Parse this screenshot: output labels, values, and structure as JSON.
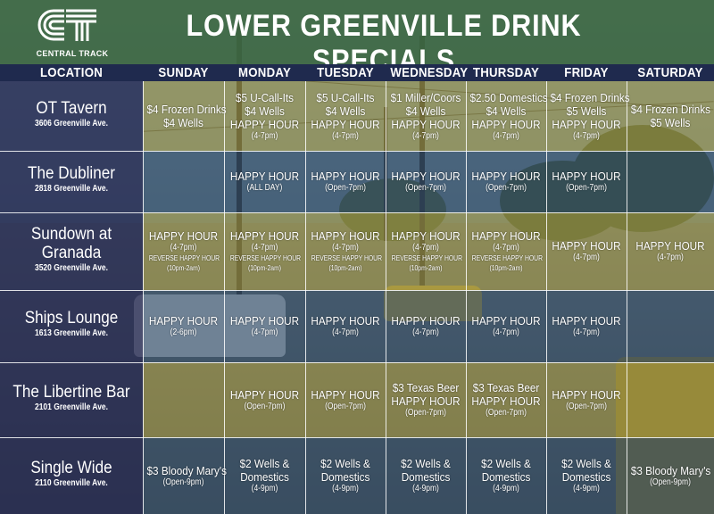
{
  "header": {
    "brand": "CENTRAL TRACK",
    "title": "LOWER GREENVILLE DRINK SPECIALS"
  },
  "columns": [
    "LOCATION",
    "SUNDAY",
    "MONDAY",
    "TUESDAY",
    "WEDNESDAY",
    "THURSDAY",
    "FRIDAY",
    "SATURDAY"
  ],
  "rows": [
    {
      "name": "OT Tavern",
      "address": "3606 Greenville Ave.",
      "days": [
        [
          {
            "t": "$4 Frozen Drinks",
            "k": "l"
          },
          {
            "t": "$4 Wells",
            "k": "l"
          }
        ],
        [
          {
            "t": "$5 U-Call-Its",
            "k": "l"
          },
          {
            "t": "$4 Wells",
            "k": "l"
          },
          {
            "t": "HAPPY HOUR",
            "k": "l"
          },
          {
            "t": "(4-7pm)",
            "k": "s"
          }
        ],
        [
          {
            "t": "$5 U-Call-Its",
            "k": "l"
          },
          {
            "t": "$4 Wells",
            "k": "l"
          },
          {
            "t": "HAPPY HOUR",
            "k": "l"
          },
          {
            "t": "(4-7pm)",
            "k": "s"
          }
        ],
        [
          {
            "t": "$1 Miller/Coors",
            "k": "l"
          },
          {
            "t": "$4 Wells",
            "k": "l"
          },
          {
            "t": "HAPPY HOUR",
            "k": "l"
          },
          {
            "t": "(4-7pm)",
            "k": "s"
          }
        ],
        [
          {
            "t": "$2.50 Domestics",
            "k": "l"
          },
          {
            "t": "$4 Wells",
            "k": "l"
          },
          {
            "t": "HAPPY HOUR",
            "k": "l"
          },
          {
            "t": "(4-7pm)",
            "k": "s"
          }
        ],
        [
          {
            "t": "$4 Frozen Drinks",
            "k": "l"
          },
          {
            "t": "$5 Wells",
            "k": "l"
          },
          {
            "t": "HAPPY HOUR",
            "k": "l"
          },
          {
            "t": "(4-7pm)",
            "k": "s"
          }
        ],
        [
          {
            "t": "$4 Frozen Drinks",
            "k": "l"
          },
          {
            "t": "$5 Wells",
            "k": "l"
          }
        ]
      ]
    },
    {
      "name": "The Dubliner",
      "address": "2818 Greenville Ave.",
      "days": [
        [],
        [
          {
            "t": "HAPPY HOUR",
            "k": "l"
          },
          {
            "t": "(ALL DAY)",
            "k": "s"
          }
        ],
        [
          {
            "t": "HAPPY HOUR",
            "k": "l"
          },
          {
            "t": "(Open-7pm)",
            "k": "s"
          }
        ],
        [
          {
            "t": "HAPPY HOUR",
            "k": "l"
          },
          {
            "t": "(Open-7pm)",
            "k": "s"
          }
        ],
        [
          {
            "t": "HAPPY HOUR",
            "k": "l"
          },
          {
            "t": "(Open-7pm)",
            "k": "s"
          }
        ],
        [
          {
            "t": "HAPPY HOUR",
            "k": "l"
          },
          {
            "t": "(Open-7pm)",
            "k": "s"
          }
        ],
        []
      ]
    },
    {
      "name": "Sundown at Granada",
      "address": "3520 Greenville Ave.",
      "days": [
        [
          {
            "t": "HAPPY HOUR",
            "k": "l"
          },
          {
            "t": "(4-7pm)",
            "k": "s"
          },
          {
            "t": "REVERSE HAPPY HOUR",
            "k": "xs"
          },
          {
            "t": "(10pm-2am)",
            "k": "xs"
          }
        ],
        [
          {
            "t": "HAPPY HOUR",
            "k": "l"
          },
          {
            "t": "(4-7pm)",
            "k": "s"
          },
          {
            "t": "REVERSE HAPPY HOUR",
            "k": "xs"
          },
          {
            "t": "(10pm-2am)",
            "k": "xs"
          }
        ],
        [
          {
            "t": "HAPPY HOUR",
            "k": "l"
          },
          {
            "t": "(4-7pm)",
            "k": "s"
          },
          {
            "t": "REVERSE HAPPY HOUR",
            "k": "xs"
          },
          {
            "t": "(10pm-2am)",
            "k": "xs"
          }
        ],
        [
          {
            "t": "HAPPY HOUR",
            "k": "l"
          },
          {
            "t": "(4-7pm)",
            "k": "s"
          },
          {
            "t": "REVERSE HAPPY HOUR",
            "k": "xs"
          },
          {
            "t": "(10pm-2am)",
            "k": "xs"
          }
        ],
        [
          {
            "t": "HAPPY HOUR",
            "k": "l"
          },
          {
            "t": "(4-7pm)",
            "k": "s"
          },
          {
            "t": "REVERSE HAPPY HOUR",
            "k": "xs"
          },
          {
            "t": "(10pm-2am)",
            "k": "xs"
          }
        ],
        [
          {
            "t": "HAPPY HOUR",
            "k": "l"
          },
          {
            "t": "(4-7pm)",
            "k": "s"
          }
        ],
        [
          {
            "t": "HAPPY HOUR",
            "k": "l"
          },
          {
            "t": "(4-7pm)",
            "k": "s"
          }
        ]
      ]
    },
    {
      "name": "Ships Lounge",
      "address": "1613 Greenville Ave.",
      "days": [
        [
          {
            "t": "HAPPY HOUR",
            "k": "l"
          },
          {
            "t": "(2-6pm)",
            "k": "s"
          }
        ],
        [
          {
            "t": "HAPPY HOUR",
            "k": "l"
          },
          {
            "t": "(4-7pm)",
            "k": "s"
          }
        ],
        [
          {
            "t": "HAPPY HOUR",
            "k": "l"
          },
          {
            "t": "(4-7pm)",
            "k": "s"
          }
        ],
        [
          {
            "t": "HAPPY HOUR",
            "k": "l"
          },
          {
            "t": "(4-7pm)",
            "k": "s"
          }
        ],
        [
          {
            "t": "HAPPY HOUR",
            "k": "l"
          },
          {
            "t": "(4-7pm)",
            "k": "s"
          }
        ],
        [
          {
            "t": "HAPPY HOUR",
            "k": "l"
          },
          {
            "t": "(4-7pm)",
            "k": "s"
          }
        ],
        []
      ]
    },
    {
      "name": "The Libertine Bar",
      "address": "2101 Greenville Ave.",
      "days": [
        [],
        [
          {
            "t": "HAPPY HOUR",
            "k": "l"
          },
          {
            "t": "(Open-7pm)",
            "k": "s"
          }
        ],
        [
          {
            "t": "HAPPY HOUR",
            "k": "l"
          },
          {
            "t": "(Open-7pm)",
            "k": "s"
          }
        ],
        [
          {
            "t": "$3 Texas Beer",
            "k": "l"
          },
          {
            "t": "HAPPY HOUR",
            "k": "l"
          },
          {
            "t": "(Open-7pm)",
            "k": "s"
          }
        ],
        [
          {
            "t": "$3 Texas Beer",
            "k": "l"
          },
          {
            "t": "HAPPY HOUR",
            "k": "l"
          },
          {
            "t": "(Open-7pm)",
            "k": "s"
          }
        ],
        [
          {
            "t": "HAPPY HOUR",
            "k": "l"
          },
          {
            "t": "(Open-7pm)",
            "k": "s"
          }
        ],
        []
      ]
    },
    {
      "name": "Single Wide",
      "address": "2110 Greenville Ave.",
      "days": [
        [
          {
            "t": "$3 Bloody Mary's",
            "k": "l"
          },
          {
            "t": "(Open-9pm)",
            "k": "s"
          }
        ],
        [
          {
            "t": "$2 Wells &",
            "k": "l"
          },
          {
            "t": "Domestics",
            "k": "l"
          },
          {
            "t": "(4-9pm)",
            "k": "s"
          }
        ],
        [
          {
            "t": "$2 Wells &",
            "k": "l"
          },
          {
            "t": "Domestics",
            "k": "l"
          },
          {
            "t": "(4-9pm)",
            "k": "s"
          }
        ],
        [
          {
            "t": "$2 Wells &",
            "k": "l"
          },
          {
            "t": "Domestics",
            "k": "l"
          },
          {
            "t": "(4-9pm)",
            "k": "s"
          }
        ],
        [
          {
            "t": "$2 Wells &",
            "k": "l"
          },
          {
            "t": "Domestics",
            "k": "l"
          },
          {
            "t": "(4-9pm)",
            "k": "s"
          }
        ],
        [
          {
            "t": "$2 Wells &",
            "k": "l"
          },
          {
            "t": "Domestics",
            "k": "l"
          },
          {
            "t": "(4-9pm)",
            "k": "s"
          }
        ],
        [
          {
            "t": "$3 Bloody Mary's",
            "k": "l"
          },
          {
            "t": "(Open-9pm)",
            "k": "s"
          }
        ]
      ]
    }
  ],
  "colors": {
    "header_green": "#3e6842",
    "column_header_navy": "#1f2a4e",
    "location_navy": "#222650",
    "band_yellow": "#a09440",
    "band_blue": "#2e4a68"
  }
}
